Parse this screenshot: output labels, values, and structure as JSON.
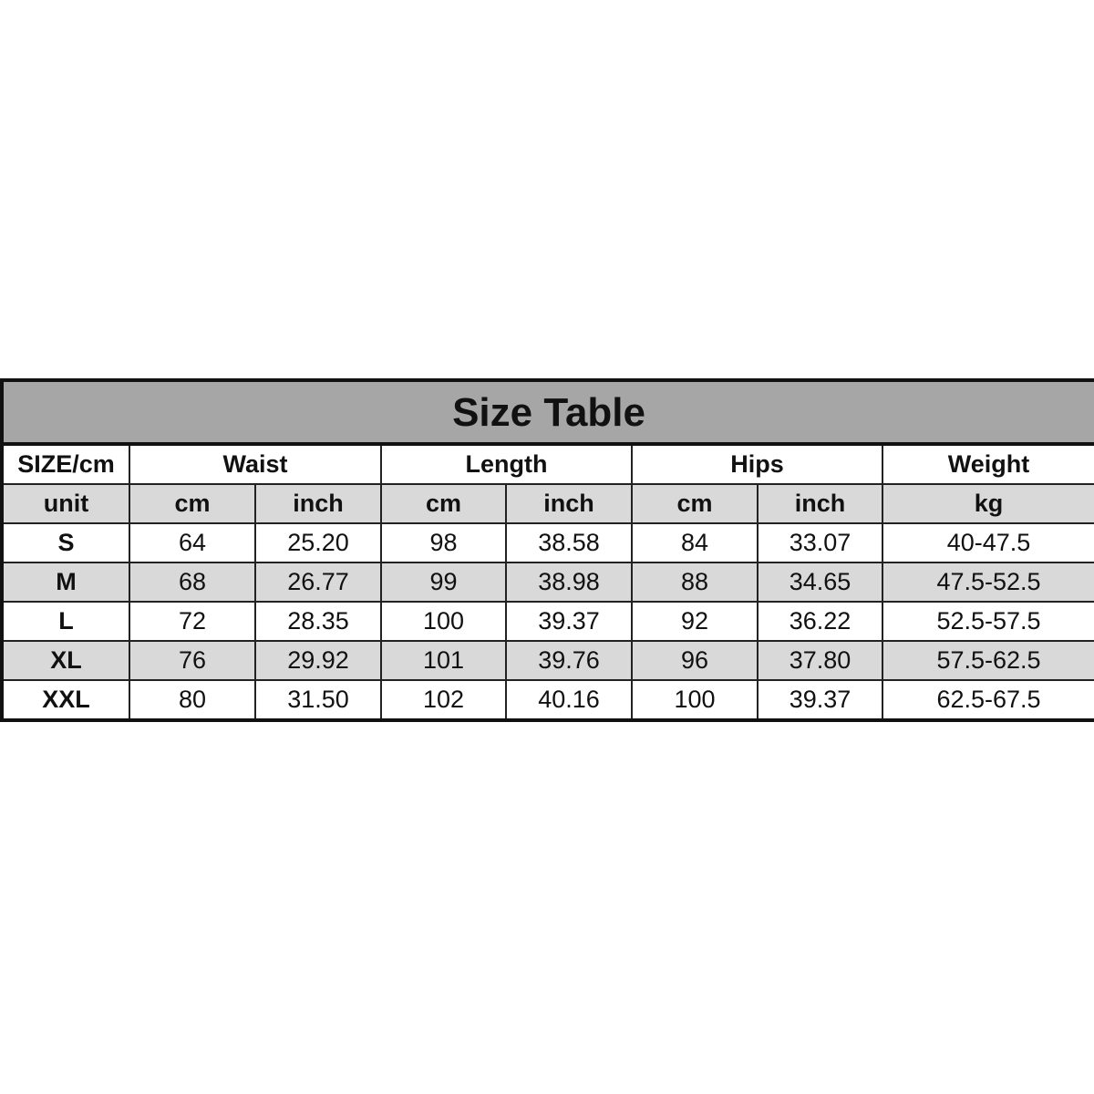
{
  "title": "Size Table",
  "header": {
    "size": "SIZE/cm",
    "waist": "Waist",
    "length": "Length",
    "hips": "Hips",
    "weight": "Weight"
  },
  "units": [
    "unit",
    "cm",
    "inch",
    "cm",
    "inch",
    "cm",
    "inch",
    "kg"
  ],
  "rows": [
    [
      "S",
      "64",
      "25.20",
      "98",
      "38.58",
      "84",
      "33.07",
      "40-47.5"
    ],
    [
      "M",
      "68",
      "26.77",
      "99",
      "38.98",
      "88",
      "34.65",
      "47.5-52.5"
    ],
    [
      "L",
      "72",
      "28.35",
      "100",
      "39.37",
      "92",
      "36.22",
      "52.5-57.5"
    ],
    [
      "XL",
      "76",
      "29.92",
      "101",
      "39.76",
      "96",
      "37.80",
      "57.5-62.5"
    ],
    [
      "XXL",
      "80",
      "31.50",
      "102",
      "40.16",
      "100",
      "39.37",
      "62.5-67.5"
    ]
  ],
  "colors": {
    "title_bg": "#a6a6a6",
    "alt_row_bg": "#d9d9d9",
    "border": "#111111"
  }
}
